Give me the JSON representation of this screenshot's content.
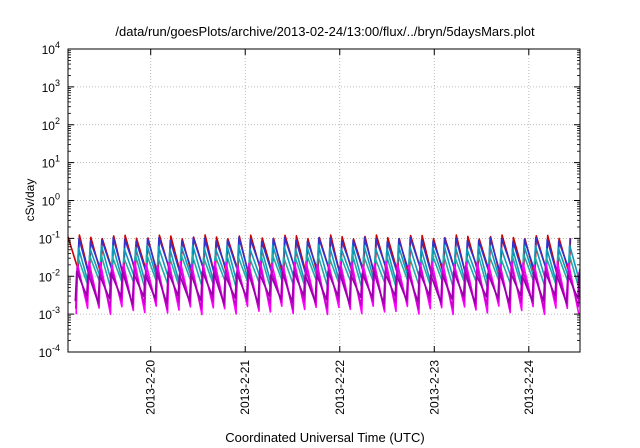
{
  "chart_data": {
    "type": "line",
    "title": "/data/run/goesPlots/archive/2013-02-24/13:00/flux/../bryn/5daysMars.plot",
    "xlabel": "Coordinated Universal Time (UTC)",
    "ylabel": "cSv/day",
    "yscale": "log",
    "ylim": [
      0.0001,
      10000
    ],
    "xlim": [
      "2013-02-19 03:00",
      "2013-02-24 13:00"
    ],
    "grid": true,
    "legend": "none",
    "y_ticks": [
      {
        "base": "10",
        "exp": "4"
      },
      {
        "base": "10",
        "exp": "3"
      },
      {
        "base": "10",
        "exp": "2"
      },
      {
        "base": "10",
        "exp": "1"
      },
      {
        "base": "10",
        "exp": "0"
      },
      {
        "base": "10",
        "exp": "-1"
      },
      {
        "base": "10",
        "exp": "-2"
      },
      {
        "base": "10",
        "exp": "-3"
      },
      {
        "base": "10",
        "exp": "-4"
      }
    ],
    "x_ticks": [
      "2013-2-20",
      "2013-2-21",
      "2013-2-22",
      "2013-2-23",
      "2013-2-24"
    ],
    "cycle_hours": 2.9,
    "series": [
      {
        "color": "#cc0000",
        "peak": 0.11,
        "trough": 0.012
      },
      {
        "color": "#3333cc",
        "peak": 0.095,
        "trough": 0.014
      },
      {
        "color": "#1199bb",
        "peak": 0.06,
        "trough": 0.008
      },
      {
        "color": "#22aaaa",
        "peak": 0.035,
        "trough": 0.006
      },
      {
        "color": "#ff00ff",
        "peak": 0.022,
        "trough": 0.0013
      },
      {
        "color": "#cc00cc",
        "peak": 0.016,
        "trough": 0.0018
      },
      {
        "color": "#9900aa",
        "peak": 0.012,
        "trough": 0.0025
      }
    ]
  }
}
